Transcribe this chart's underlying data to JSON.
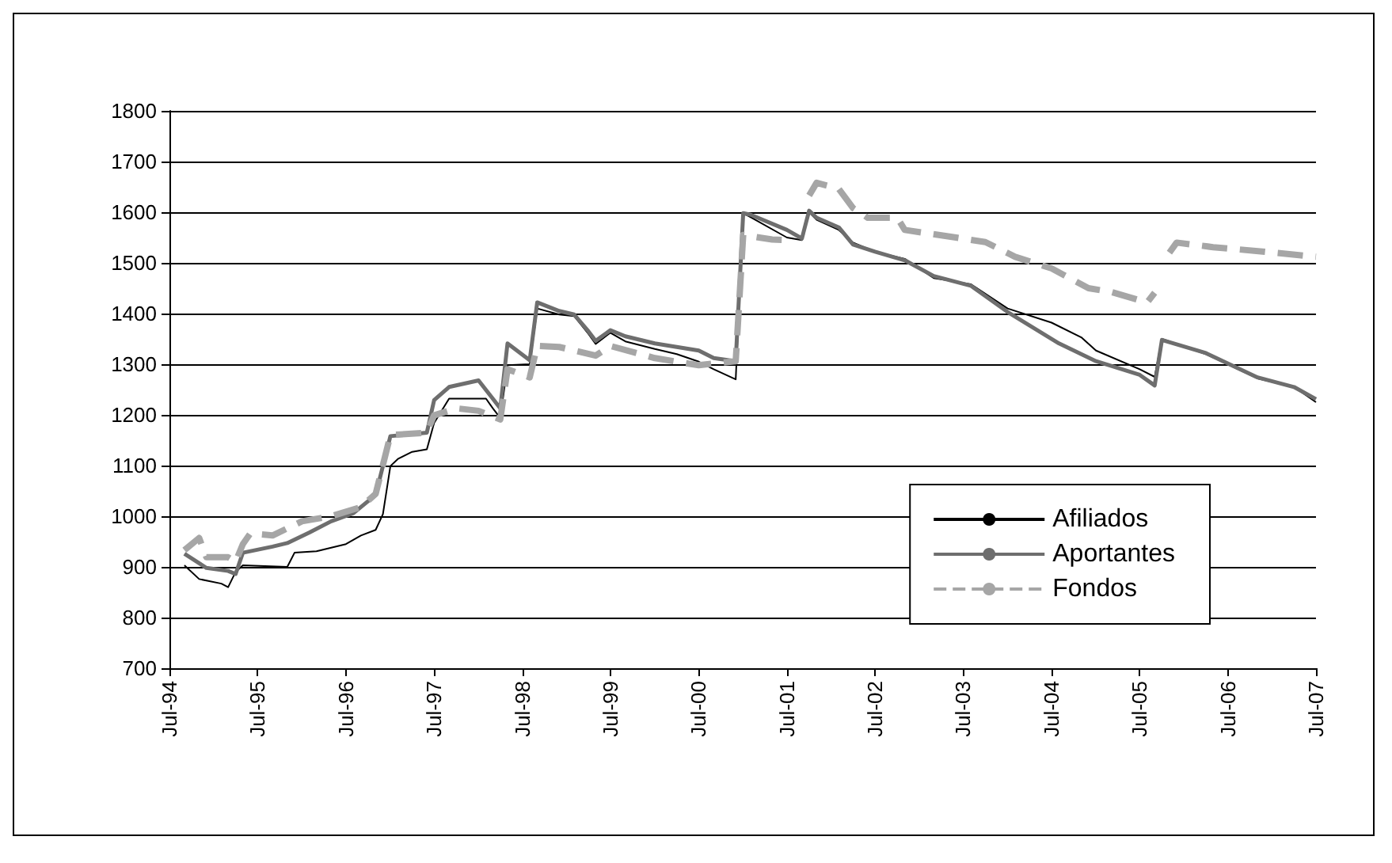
{
  "chart_data": {
    "type": "line",
    "xlim": [
      "1994-07",
      "2007-07"
    ],
    "ylim": [
      700,
      1800
    ],
    "yticks": [
      700,
      800,
      900,
      1000,
      1100,
      1200,
      1300,
      1400,
      1500,
      1600,
      1700,
      1800
    ],
    "xticks": [
      {
        "value": "1994-07",
        "label": "Jul-94"
      },
      {
        "value": "1995-07",
        "label": "Jul-95"
      },
      {
        "value": "1996-07",
        "label": "Jul-96"
      },
      {
        "value": "1997-07",
        "label": "Jul-97"
      },
      {
        "value": "1998-07",
        "label": "Jul-98"
      },
      {
        "value": "1999-07",
        "label": "Jul-99"
      },
      {
        "value": "2000-07",
        "label": "Jul-00"
      },
      {
        "value": "2001-07",
        "label": "Jul-01"
      },
      {
        "value": "2002-07",
        "label": "Jul-02"
      },
      {
        "value": "2003-07",
        "label": "Jul-03"
      },
      {
        "value": "2004-07",
        "label": "Jul-04"
      },
      {
        "value": "2005-07",
        "label": "Jul-05"
      },
      {
        "value": "2006-07",
        "label": "Jul-06"
      },
      {
        "value": "2007-07",
        "label": "Jul-07"
      }
    ],
    "grid": "y",
    "legend": "bottom right",
    "marker": "none",
    "series": [
      {
        "name": "Afiliados",
        "color": "#000000",
        "line_style": "solid",
        "x": [
          "1994-09",
          "1994-11",
          "1995-02",
          "1995-03",
          "1995-04",
          "1995-05",
          "1995-11",
          "1995-12",
          "1996-03",
          "1996-07",
          "1996-09",
          "1996-11",
          "1996-12",
          "1997-01",
          "1997-02",
          "1997-04",
          "1997-06",
          "1997-07",
          "1997-09",
          "1998-02",
          "1998-03",
          "1998-04",
          "1998-05",
          "1998-08",
          "1998-09",
          "1998-12",
          "1999-02",
          "1999-04",
          "1999-05",
          "1999-07",
          "1999-09",
          "2000-01",
          "2000-04",
          "2000-07",
          "2000-09",
          "2000-12",
          "2001-01",
          "2001-02",
          "2001-07",
          "2001-09",
          "2001-10",
          "2001-11",
          "2002-02",
          "2002-04",
          "2002-07",
          "2002-11",
          "2003-03",
          "2003-08",
          "2004-01",
          "2004-07",
          "2004-11",
          "2005-01",
          "2005-07",
          "2005-09",
          "2005-10",
          "2006-04",
          "2006-11",
          "2007-04",
          "2007-07"
        ],
        "values": [
          903,
          876,
          867,
          860,
          890,
          903,
          900,
          928,
          931,
          945,
          962,
          973,
          1004,
          1099,
          1113,
          1127,
          1132,
          1184,
          1232,
          1232,
          1213,
          1194,
          1298,
          1300,
          1410,
          1398,
          1395,
          1360,
          1340,
          1362,
          1345,
          1330,
          1320,
          1305,
          1290,
          1270,
          1598,
          1590,
          1550,
          1545,
          1600,
          1585,
          1565,
          1540,
          1522,
          1508,
          1470,
          1458,
          1410,
          1382,
          1353,
          1327,
          1290,
          1275,
          1350,
          1320,
          1272,
          1255,
          1225
        ]
      },
      {
        "name": "Aportantes",
        "color": "#6e6e6e",
        "line_style": "solid",
        "x": [
          "1994-09",
          "1994-12",
          "1995-03",
          "1995-04",
          "1995-05",
          "1995-09",
          "1995-11",
          "1996-02",
          "1996-05",
          "1996-08",
          "1996-11",
          "1997-01",
          "1997-06",
          "1997-07",
          "1997-09",
          "1998-01",
          "1998-03",
          "1998-04",
          "1998-05",
          "1998-08",
          "1998-09",
          "1998-12",
          "1999-02",
          "1999-04",
          "1999-05",
          "1999-07",
          "1999-09",
          "2000-01",
          "2000-04",
          "2000-07",
          "2000-09",
          "2000-12",
          "2001-01",
          "2001-02",
          "2001-07",
          "2001-09",
          "2001-10",
          "2001-11",
          "2002-02",
          "2002-04",
          "2002-07",
          "2002-11",
          "2003-03",
          "2003-08",
          "2004-01",
          "2004-08",
          "2005-01",
          "2005-07",
          "2005-09",
          "2005-10",
          "2006-04",
          "2006-11",
          "2007-04",
          "2007-07"
        ],
        "values": [
          926,
          898,
          892,
          886,
          928,
          940,
          947,
          968,
          990,
          1006,
          1042,
          1158,
          1165,
          1229,
          1255,
          1268,
          1232,
          1213,
          1341,
          1308,
          1422,
          1405,
          1398,
          1365,
          1346,
          1367,
          1355,
          1341,
          1334,
          1327,
          1312,
          1306,
          1598,
          1595,
          1565,
          1548,
          1603,
          1589,
          1570,
          1536,
          1522,
          1505,
          1474,
          1455,
          1403,
          1341,
          1306,
          1279,
          1258,
          1348,
          1322,
          1274,
          1255,
          1231
        ]
      },
      {
        "name": "Fondos",
        "color": "#a6a6a6",
        "line_style": "dashed",
        "x": [
          "1994-09",
          "1994-11",
          "1994-12",
          "1995-03",
          "1995-04",
          "1995-05",
          "1995-06",
          "1995-09",
          "1996-01",
          "1996-05",
          "1996-09",
          "1996-11",
          "1997-01",
          "1997-06",
          "1997-07",
          "1997-10",
          "1998-01",
          "1998-04",
          "1998-05",
          "1998-08",
          "1998-09",
          "1998-12",
          "1999-05",
          "1999-07",
          "2000-01",
          "2000-07",
          "2000-12",
          "2001-01",
          "2001-05",
          "2001-08",
          "2001-09",
          "2001-10",
          "2001-11",
          "2002-02",
          "2002-04",
          "2002-06",
          "2002-10",
          "2002-11",
          "2003-06",
          "2003-10",
          "2004-02",
          "2004-07",
          "2004-12",
          "2005-03",
          "2005-08",
          "2005-09",
          "2005-10",
          "2005-11",
          "2005-12",
          "2006-05",
          "2006-12",
          "2007-07"
        ],
        "values": [
          933,
          957,
          919,
          919,
          910,
          945,
          966,
          962,
          990,
          1000,
          1018,
          1044,
          1160,
          1165,
          1199,
          1213,
          1208,
          1191,
          1290,
          1274,
          1336,
          1334,
          1317,
          1336,
          1312,
          1298,
          1306,
          1555,
          1546,
          1544,
          null,
          1633,
          1658,
          1646,
          1608,
          1589,
          1589,
          1565,
          1550,
          1541,
          1512,
          1489,
          1450,
          1443,
          1422,
          1441,
          null,
          1520,
          1540,
          1531,
          1522,
          1512
        ]
      }
    ]
  }
}
